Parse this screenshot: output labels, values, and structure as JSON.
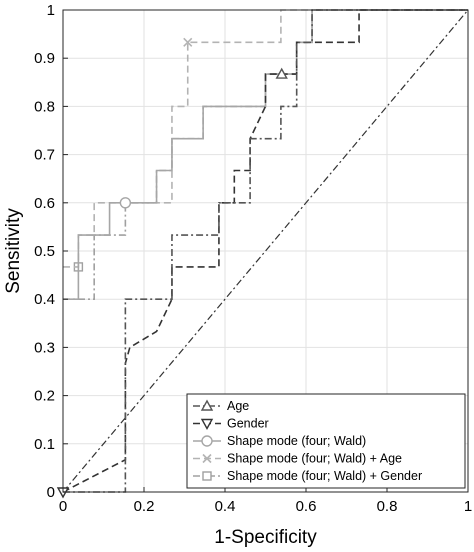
{
  "chart_data": {
    "type": "line",
    "xlabel": "1-Specificity",
    "ylabel": "Sensitivity",
    "xlim": [
      0,
      1
    ],
    "ylim": [
      0,
      1
    ],
    "grid": true,
    "legend_position": "bottom-right",
    "x_ticks": [
      0,
      0.2,
      0.4,
      0.6,
      0.8,
      1
    ],
    "x_tick_labels": [
      "0",
      "0.2",
      "0.4",
      "0.6",
      "0.8",
      "1"
    ],
    "y_ticks": [
      0,
      0.1,
      0.2,
      0.3,
      0.4,
      0.5,
      0.6,
      0.7,
      0.8,
      0.9,
      1
    ],
    "y_tick_labels": [
      "0",
      "0.1",
      "0.2",
      "0.3",
      "0.4",
      "0.5",
      "0.6",
      "0.7",
      "0.8",
      "0.9",
      "1"
    ],
    "series": [
      {
        "name": "Age",
        "color": "#555555",
        "dash": "dashdot",
        "marker": "triangle-up",
        "marker_point": [
          0.54,
          0.867
        ],
        "x": [
          0,
          0.154,
          0.154,
          0.269,
          0.269,
          0.385,
          0.385,
          0.462,
          0.462,
          0.538,
          0.538,
          0.577,
          0.577,
          0.615,
          0.615,
          1
        ],
        "y": [
          0,
          0,
          0.4,
          0.4,
          0.533,
          0.533,
          0.6,
          0.6,
          0.733,
          0.733,
          0.8,
          0.8,
          0.933,
          0.933,
          1,
          1
        ]
      },
      {
        "name": "Gender",
        "color": "#333333",
        "dash": "dash",
        "marker": "triangle-down",
        "marker_point": [
          0,
          0
        ],
        "x": [
          0,
          0.154,
          0.154,
          0.165,
          0.231,
          0.269,
          0.269,
          0.385,
          0.385,
          0.423,
          0.423,
          0.462,
          0.462,
          0.5,
          0.5,
          0.538,
          0.538,
          0.577,
          0.577,
          0.615,
          0.615,
          0.731,
          0.731,
          1
        ],
        "y": [
          0,
          0.067,
          0.267,
          0.3,
          0.333,
          0.4,
          0.467,
          0.467,
          0.6,
          0.6,
          0.667,
          0.667,
          0.733,
          0.8,
          0.867,
          0.867,
          0.867,
          0.867,
          0.933,
          0.933,
          0.933,
          0.933,
          1,
          1
        ]
      },
      {
        "name": "Shape mode (four; Wald)",
        "color": "#a6a6a6",
        "dash": "solid",
        "marker": "circle",
        "marker_point": [
          0.154,
          0.6
        ],
        "x": [
          0,
          0.038,
          0.038,
          0.115,
          0.115,
          0.154,
          0.154,
          0.231,
          0.231,
          0.269,
          0.269,
          0.346,
          0.346,
          0.5,
          0.5,
          0.577,
          0.577,
          0.615,
          0.615,
          1
        ],
        "y": [
          0.4,
          0.4,
          0.533,
          0.533,
          0.6,
          0.6,
          0.6,
          0.6,
          0.667,
          0.667,
          0.733,
          0.733,
          0.8,
          0.8,
          0.867,
          0.867,
          0.933,
          0.933,
          1,
          1
        ]
      },
      {
        "name": "Shape mode (four; Wald) + Age",
        "color": "#b3b3b3",
        "dash": "dash",
        "marker": "x",
        "marker_point": [
          0.308,
          0.933
        ],
        "x": [
          0,
          0.038,
          0.038,
          0.077,
          0.077,
          0.269,
          0.269,
          0.308,
          0.308,
          0.5,
          0.5,
          0.538,
          0.538,
          1
        ],
        "y": [
          0.467,
          0.467,
          0.533,
          0.533,
          0.6,
          0.6,
          0.8,
          0.8,
          0.933,
          0.933,
          0.933,
          0.933,
          1,
          1
        ]
      },
      {
        "name": "Shape mode (four; Wald) + Gender",
        "color": "#a0a0a0",
        "dash": "dashdot",
        "marker": "square",
        "marker_point": [
          0.038,
          0.467
        ],
        "x": [
          0,
          0.077,
          0.077,
          0.154,
          0.154,
          0.231,
          0.231,
          0.269,
          0.269,
          0.346,
          0.346,
          0.5,
          0.5,
          0.577,
          0.577,
          0.615,
          0.615,
          1
        ],
        "y": [
          0.4,
          0.4,
          0.533,
          0.533,
          0.6,
          0.6,
          0.667,
          0.667,
          0.733,
          0.733,
          0.8,
          0.8,
          0.867,
          0.867,
          0.933,
          0.933,
          1,
          1
        ]
      }
    ],
    "reference_line": {
      "color": "#333333",
      "dash": "dashdot",
      "x": [
        0,
        1
      ],
      "y": [
        0,
        1
      ]
    }
  }
}
